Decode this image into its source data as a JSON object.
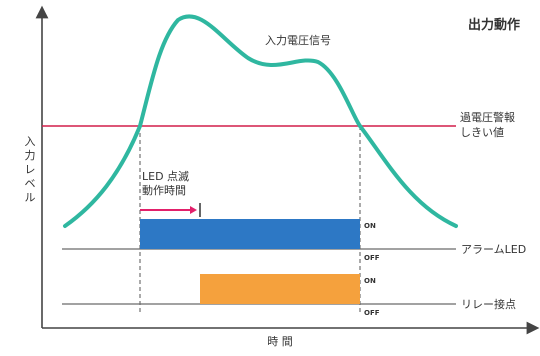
{
  "title": "出力動作",
  "curve_label": "入力電圧信号",
  "threshold_label": [
    "過電圧警報",
    "しきい値"
  ],
  "y_axis_label": "入力レベル",
  "x_axis_label": "時 間",
  "led_blink_label": [
    "LED 点滅",
    "動作時間"
  ],
  "alarm_led": {
    "label": "アラームLED",
    "on": "ON",
    "off": "OFF"
  },
  "relay": {
    "label": "リレー接点",
    "on": "ON",
    "off": "OFF"
  },
  "colors": {
    "curve": "#2fb7a0",
    "threshold": "#d21f4a",
    "marker": "#e2206b",
    "led_bar": "#2d78c5",
    "relay_bar": "#f5a13d",
    "axis": "#444444",
    "level_line": "#6a6a6a"
  }
}
